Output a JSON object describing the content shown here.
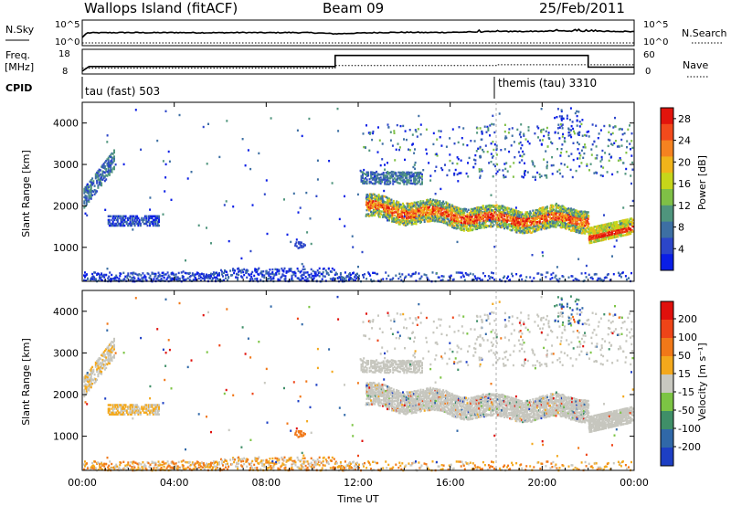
{
  "header": {
    "station": "Wallops Island (fitACF)",
    "beam": "Beam 09",
    "date": "25/Feb/2011"
  },
  "nsky_panel": {
    "left_label": "N.Sky",
    "right_label": "N.Search",
    "ticks_left": [
      "10^5",
      "10^0"
    ],
    "ticks_right": [
      "10^5",
      "10^0"
    ]
  },
  "freq_panel": {
    "left_label_1": "Freq.",
    "left_label_2": "[MHz]",
    "right_label": "Nave",
    "ticks_left": [
      "18",
      "8"
    ],
    "ticks_right": [
      "60",
      "0"
    ]
  },
  "cpid_panel": {
    "label": "CPID",
    "modes": [
      {
        "name": "tau (fast) 503",
        "start_h": 0
      },
      {
        "name": "themis (tau) 3310",
        "start_h": 18
      }
    ]
  },
  "chart_data": [
    {
      "type": "line",
      "name": "N.Sky / N.Search",
      "scale": "log",
      "ylim": [
        1,
        100000
      ],
      "x_hours": [
        0,
        0.2,
        1,
        2,
        3,
        4,
        5,
        6,
        7,
        8,
        9,
        10,
        11,
        12,
        13,
        14,
        15,
        16,
        17,
        18,
        19,
        20,
        21,
        22,
        23,
        24
      ],
      "nsky_rel": [
        0.3,
        0.55,
        0.56,
        0.57,
        0.56,
        0.57,
        0.56,
        0.56,
        0.57,
        0.56,
        0.57,
        0.56,
        0.5,
        0.54,
        0.57,
        0.58,
        0.57,
        0.58,
        0.6,
        0.62,
        0.63,
        0.64,
        0.66,
        0.64,
        0.64,
        0.62
      ]
    },
    {
      "type": "line",
      "name": "Freq / Nave",
      "ylim_left": [
        8,
        18
      ],
      "ylim_right": [
        0,
        60
      ],
      "xlabel": "",
      "freq_steps": [
        [
          0,
          8.5
        ],
        [
          0.3,
          10.8
        ],
        [
          11,
          10.8
        ],
        [
          11,
          16.3
        ],
        [
          22,
          16.3
        ],
        [
          22,
          10.5
        ],
        [
          24,
          10.5
        ]
      ],
      "nave_steps": [
        [
          0,
          12
        ],
        [
          11,
          12
        ],
        [
          11,
          20
        ],
        [
          18,
          20
        ],
        [
          18,
          22
        ],
        [
          22,
          22
        ],
        [
          22,
          22
        ],
        [
          24,
          22
        ]
      ]
    },
    {
      "type": "heatmap",
      "ylabel": "Slant Range [km]",
      "xlim": [
        0,
        24
      ],
      "ylim": [
        180,
        4500
      ],
      "y_ticks": [
        1000,
        2000,
        3000,
        4000
      ],
      "colorbar_label": "Power [dB]",
      "colorbar_ticks": [
        4,
        8,
        12,
        16,
        20,
        24,
        28
      ],
      "colorbar_range": [
        0,
        30
      ],
      "colorbar_colors": [
        "#0a1ee6",
        "#2c46c9",
        "#3d6fa3",
        "#4f957d",
        "#7fc046",
        "#c6d61a",
        "#f0b41a",
        "#f58220",
        "#f24a1c",
        "#e2140c"
      ]
    },
    {
      "type": "heatmap",
      "ylabel": "Slant Range [km]",
      "xlabel": "Time UT",
      "x_tick_labels": [
        "00:00",
        "04:00",
        "08:00",
        "12:00",
        "16:00",
        "20:00",
        "00:00"
      ],
      "x_ticks_h": [
        0,
        4,
        8,
        12,
        16,
        20,
        24
      ],
      "xlim": [
        0,
        24
      ],
      "ylim": [
        180,
        4500
      ],
      "y_ticks": [
        1000,
        2000,
        3000,
        4000
      ],
      "colorbar_label": "Velocity [m s⁻¹]",
      "colorbar_ticks": [
        "200",
        "100",
        "50",
        "15",
        "-15",
        "-50",
        "-100",
        "-200"
      ],
      "colorbar_colors": [
        "#1d3fc4",
        "#3068a8",
        "#3f8f68",
        "#7cc444",
        "#c8c8c0",
        "#f3a81c",
        "#f17818",
        "#ee4418",
        "#e0100c"
      ]
    }
  ],
  "colors": {
    "gray": "#c6c6be",
    "grid": "#cfcfcf"
  }
}
